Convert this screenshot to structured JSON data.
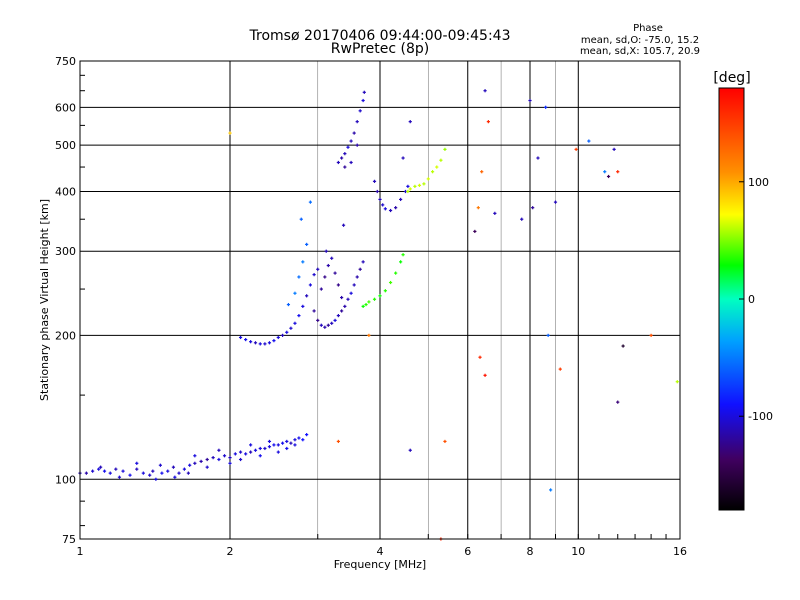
{
  "chart_data": {
    "type": "scatter",
    "title": "Tromsø 20170406 09:44:00-09:45:43",
    "subtitle": "RwPretec (8p)",
    "xlabel": "Frequency [MHz]",
    "ylabel": "Stationary phase Virtual Height [km]",
    "x_scale": "log",
    "y_scale": "log",
    "xlim": [
      1,
      16
    ],
    "ylim": [
      75,
      750
    ],
    "x_ticks": [
      "1",
      "2",
      "4",
      "6",
      "8",
      "10",
      "16"
    ],
    "x_tick_values": [
      1,
      2,
      4,
      6,
      8,
      10,
      16
    ],
    "y_ticks": [
      "75",
      "100",
      "200",
      "300",
      "400",
      "500",
      "600",
      "750"
    ],
    "y_tick_values": [
      75,
      100,
      200,
      300,
      400,
      500,
      600,
      750
    ],
    "grid": true,
    "info": {
      "heading": "Phase",
      "line1": "mean, sd,O: -75.0, 15.2",
      "line2": "mean, sd,X: 105.7, 20.9"
    },
    "colorbar": {
      "label": "[deg]",
      "ticks": [
        "100",
        "0",
        "-100"
      ],
      "tick_values": [
        100,
        0,
        -100
      ],
      "range": [
        -180,
        180
      ]
    },
    "series": [
      {
        "points": [
          [
            1.0,
            103,
            -110
          ],
          [
            1.03,
            103,
            -115
          ],
          [
            1.06,
            104,
            -105
          ],
          [
            1.09,
            105,
            -100
          ],
          [
            1.12,
            104,
            -95
          ],
          [
            1.15,
            103,
            -100
          ],
          [
            1.18,
            105,
            -110
          ],
          [
            1.22,
            104,
            -100
          ],
          [
            1.26,
            102,
            -95
          ],
          [
            1.3,
            105,
            -110
          ],
          [
            1.34,
            103,
            -100
          ],
          [
            1.38,
            102,
            -105
          ],
          [
            1.42,
            100,
            -100
          ],
          [
            1.46,
            103,
            -95
          ],
          [
            1.5,
            104,
            -100
          ],
          [
            1.54,
            106,
            -110
          ],
          [
            1.58,
            103,
            -105
          ],
          [
            1.62,
            105,
            -100
          ],
          [
            1.66,
            107,
            -100
          ],
          [
            1.7,
            108,
            -110
          ],
          [
            1.75,
            109,
            -115
          ],
          [
            1.8,
            110,
            -120
          ],
          [
            1.85,
            111,
            -110
          ],
          [
            1.9,
            110,
            -100
          ],
          [
            1.95,
            112,
            -105
          ],
          [
            2.0,
            111,
            -110
          ],
          [
            2.05,
            113,
            -100
          ],
          [
            2.1,
            114,
            -105
          ],
          [
            2.15,
            113,
            -100
          ],
          [
            2.2,
            114,
            -110
          ],
          [
            2.25,
            115,
            -100
          ],
          [
            2.3,
            116,
            -100
          ],
          [
            2.35,
            116,
            -105
          ],
          [
            2.4,
            117,
            -100
          ],
          [
            2.45,
            118,
            -95
          ],
          [
            2.5,
            118,
            -100
          ],
          [
            2.55,
            119,
            -95
          ],
          [
            2.6,
            120,
            -100
          ],
          [
            2.65,
            119,
            -110
          ],
          [
            2.7,
            121,
            -100
          ],
          [
            2.75,
            122,
            -95
          ],
          [
            2.8,
            121,
            -90
          ]
        ]
      },
      {
        "points": [
          [
            1.1,
            106,
            -110
          ],
          [
            1.2,
            101,
            -105
          ],
          [
            1.3,
            108,
            -100
          ],
          [
            1.4,
            104,
            -110
          ],
          [
            1.45,
            107,
            -105
          ],
          [
            1.55,
            101,
            -100
          ],
          [
            1.65,
            103,
            -110
          ],
          [
            1.7,
            112,
            -100
          ],
          [
            1.8,
            106,
            -105
          ],
          [
            1.9,
            115,
            -110
          ],
          [
            2.0,
            108,
            -100
          ],
          [
            2.1,
            110,
            -105
          ],
          [
            2.2,
            118,
            -100
          ],
          [
            2.3,
            112,
            -95
          ],
          [
            2.4,
            120,
            -100
          ],
          [
            2.5,
            114,
            -100
          ],
          [
            2.6,
            116,
            -95
          ],
          [
            2.7,
            118,
            -100
          ],
          [
            2.85,
            124,
            -90
          ]
        ]
      },
      {
        "points": [
          [
            2.1,
            198,
            -100
          ],
          [
            2.15,
            196,
            -95
          ],
          [
            2.2,
            194,
            -100
          ],
          [
            2.25,
            193,
            -110
          ],
          [
            2.3,
            192,
            -100
          ],
          [
            2.35,
            192,
            -105
          ],
          [
            2.4,
            193,
            -100
          ],
          [
            2.45,
            195,
            -95
          ],
          [
            2.5,
            198,
            -100
          ],
          [
            2.55,
            200,
            -110
          ],
          [
            2.6,
            203,
            -100
          ],
          [
            2.65,
            207,
            -105
          ],
          [
            2.7,
            212,
            -100
          ],
          [
            2.75,
            220,
            -95
          ],
          [
            2.8,
            230,
            -100
          ],
          [
            2.85,
            242,
            -110
          ],
          [
            2.9,
            255,
            -100
          ],
          [
            2.95,
            268,
            -105
          ],
          [
            3.0,
            275,
            -110
          ],
          [
            2.62,
            232,
            -60
          ],
          [
            2.7,
            245,
            -50
          ],
          [
            2.75,
            265,
            -55
          ],
          [
            2.8,
            285,
            -50
          ],
          [
            2.85,
            310,
            -60
          ],
          [
            2.9,
            380,
            -55
          ],
          [
            2.78,
            350,
            -60
          ]
        ]
      },
      {
        "points": [
          [
            2.95,
            225,
            -120
          ],
          [
            3.0,
            215,
            -125
          ],
          [
            3.05,
            210,
            -110
          ],
          [
            3.1,
            208,
            -115
          ],
          [
            3.15,
            210,
            -120
          ],
          [
            3.2,
            212,
            -110
          ],
          [
            3.25,
            215,
            -100
          ],
          [
            3.3,
            220,
            -110
          ],
          [
            3.35,
            225,
            -120
          ],
          [
            3.4,
            230,
            -115
          ],
          [
            3.45,
            238,
            -110
          ],
          [
            3.5,
            245,
            -100
          ],
          [
            3.55,
            255,
            -110
          ],
          [
            3.6,
            265,
            -115
          ],
          [
            3.65,
            275,
            -120
          ],
          [
            3.7,
            285,
            -110
          ],
          [
            3.05,
            250,
            -120
          ],
          [
            3.1,
            265,
            -125
          ],
          [
            3.15,
            280,
            -115
          ],
          [
            3.2,
            290,
            -110
          ],
          [
            3.25,
            270,
            -120
          ],
          [
            3.3,
            255,
            -125
          ],
          [
            3.35,
            240,
            -115
          ],
          [
            3.12,
            300,
            -110
          ]
        ]
      },
      {
        "points": [
          [
            3.3,
            460,
            -110
          ],
          [
            3.35,
            470,
            -115
          ],
          [
            3.4,
            480,
            -110
          ],
          [
            3.45,
            495,
            -100
          ],
          [
            3.5,
            510,
            -110
          ],
          [
            3.55,
            530,
            -115
          ],
          [
            3.6,
            560,
            -110
          ],
          [
            3.65,
            590,
            -105
          ],
          [
            3.7,
            620,
            -100
          ],
          [
            3.72,
            645,
            -110
          ],
          [
            3.4,
            450,
            -120
          ],
          [
            3.5,
            460,
            -110
          ],
          [
            3.6,
            500,
            -115
          ],
          [
            3.38,
            340,
            -110
          ]
        ]
      },
      {
        "points": [
          [
            3.7,
            230,
            30
          ],
          [
            3.75,
            232,
            35
          ],
          [
            3.8,
            235,
            40
          ],
          [
            3.9,
            238,
            35
          ],
          [
            4.0,
            242,
            30
          ],
          [
            4.1,
            248,
            35
          ],
          [
            4.2,
            258,
            40
          ],
          [
            4.3,
            270,
            35
          ],
          [
            4.4,
            285,
            30
          ],
          [
            4.45,
            295,
            35
          ]
        ]
      },
      {
        "points": [
          [
            3.9,
            420,
            -110
          ],
          [
            3.95,
            400,
            -115
          ],
          [
            4.0,
            385,
            -110
          ],
          [
            4.05,
            375,
            -105
          ],
          [
            4.1,
            368,
            -100
          ],
          [
            4.2,
            365,
            -110
          ],
          [
            4.3,
            370,
            -115
          ],
          [
            4.4,
            385,
            -110
          ],
          [
            4.5,
            400,
            -105
          ],
          [
            4.55,
            410,
            -100
          ],
          [
            4.45,
            470,
            -110
          ],
          [
            4.6,
            560,
            -110
          ]
        ]
      },
      {
        "points": [
          [
            4.55,
            400,
            60
          ],
          [
            4.6,
            405,
            65
          ],
          [
            4.7,
            410,
            60
          ],
          [
            4.8,
            412,
            65
          ],
          [
            4.9,
            415,
            60
          ],
          [
            5.0,
            425,
            65
          ],
          [
            5.1,
            440,
            60
          ],
          [
            5.2,
            450,
            65
          ],
          [
            5.3,
            465,
            60
          ],
          [
            5.4,
            490,
            55
          ]
        ]
      },
      {
        "points": [
          [
            2.0,
            530,
            90
          ],
          [
            6.5,
            650,
            -110
          ],
          [
            6.6,
            560,
            160
          ],
          [
            6.4,
            440,
            130
          ],
          [
            6.3,
            370,
            120
          ],
          [
            6.2,
            330,
            -140
          ],
          [
            6.35,
            180,
            160
          ],
          [
            6.5,
            165,
            170
          ],
          [
            6.8,
            360,
            -110
          ],
          [
            7.7,
            350,
            -110
          ],
          [
            8.0,
            620,
            -110
          ],
          [
            8.1,
            370,
            -120
          ],
          [
            8.3,
            470,
            -110
          ],
          [
            8.6,
            600,
            -80
          ],
          [
            9.0,
            380,
            -110
          ],
          [
            9.2,
            170,
            150
          ],
          [
            8.7,
            200,
            -60
          ],
          [
            8.8,
            95,
            -50
          ],
          [
            9.9,
            490,
            150
          ],
          [
            10.5,
            510,
            -60
          ],
          [
            11.3,
            440,
            -50
          ],
          [
            11.5,
            430,
            -140
          ],
          [
            11.8,
            490,
            -110
          ],
          [
            12.0,
            440,
            160
          ],
          [
            12.3,
            190,
            -160
          ],
          [
            12.0,
            145,
            -130
          ],
          [
            14.0,
            200,
            140
          ],
          [
            15.8,
            160,
            60
          ],
          [
            4.6,
            115,
            -110
          ],
          [
            5.3,
            75,
            160
          ],
          [
            3.3,
            120,
            140
          ],
          [
            3.8,
            200,
            120
          ],
          [
            5.4,
            120,
            140
          ]
        ]
      }
    ]
  }
}
